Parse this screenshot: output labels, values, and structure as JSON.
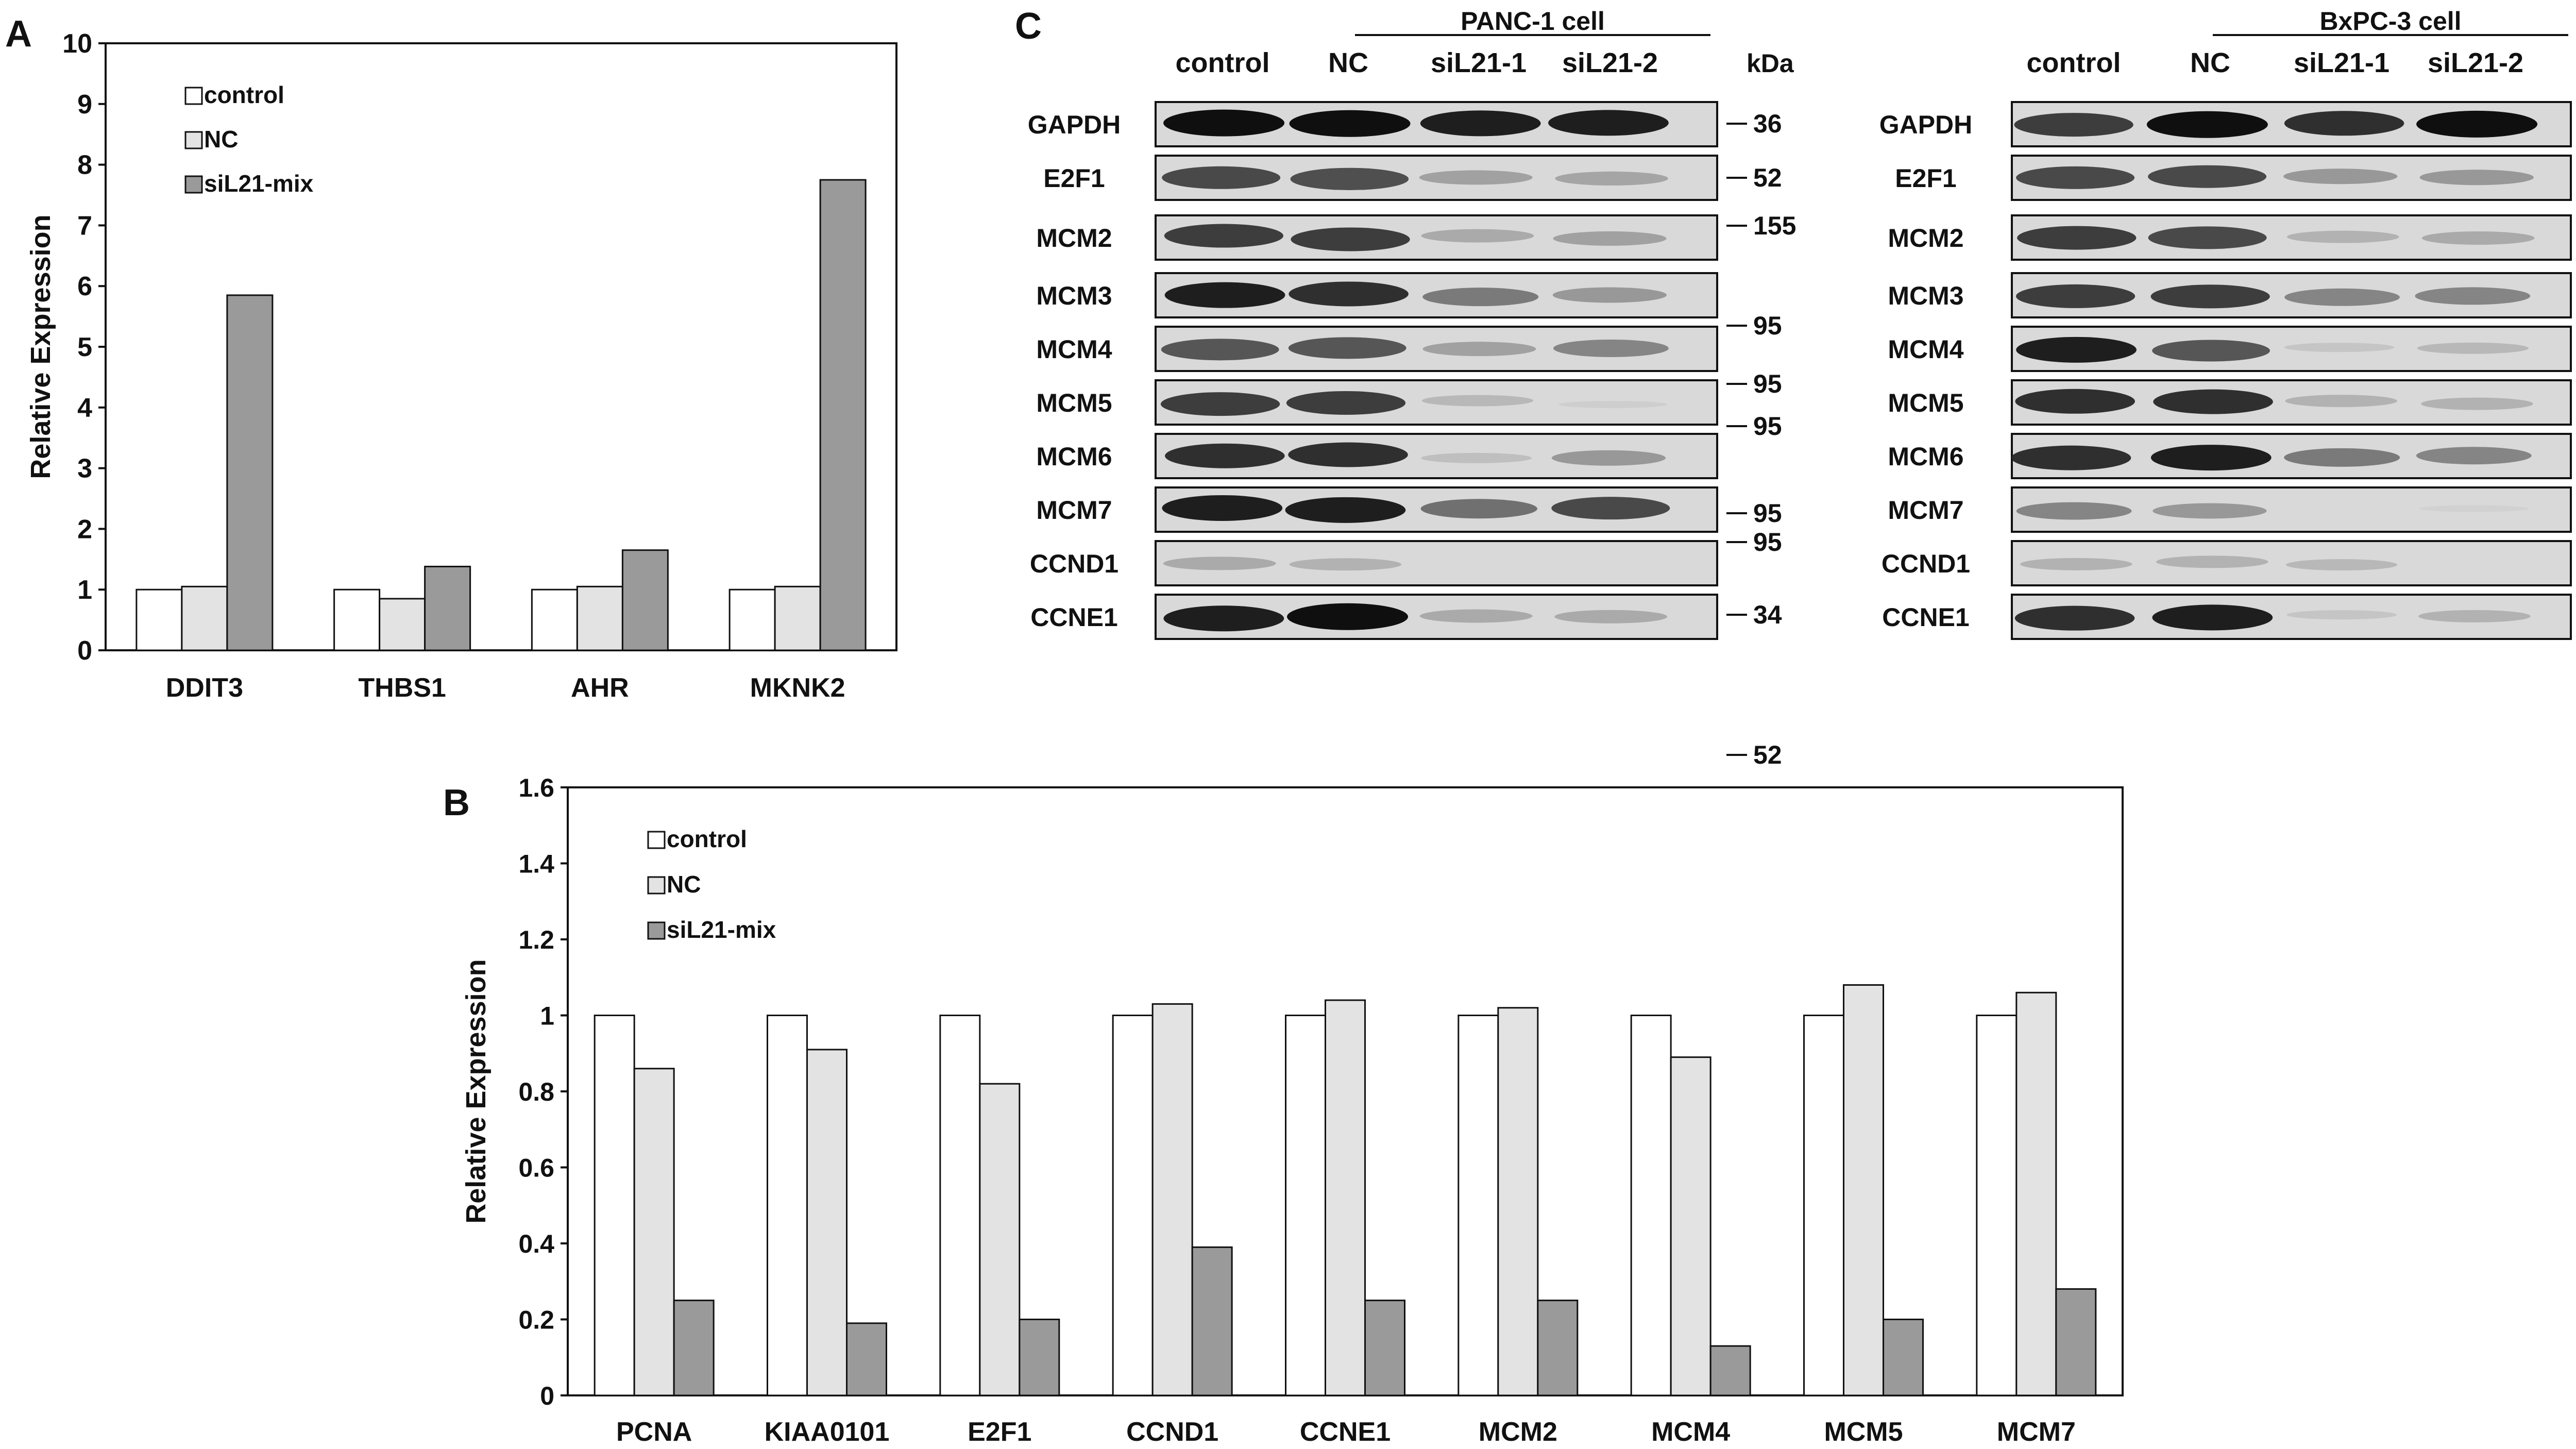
{
  "panels": {
    "a": "A",
    "b": "B",
    "c": "C"
  },
  "colors": {
    "control": "#ffffff",
    "nc": "#e3e3e3",
    "sil21_mix": "#9a9a9a",
    "stroke": "#111111",
    "blot_bg": "#d9d9d9"
  },
  "chart_data": [
    {
      "panel": "A",
      "type": "bar",
      "ylabel": "Relative Expression",
      "ylim": [
        0,
        10
      ],
      "yticks": [
        "0",
        "1",
        "2",
        "3",
        "4",
        "5",
        "6",
        "7",
        "8",
        "9",
        "10"
      ],
      "legend_position": "top-left",
      "categories": [
        "DDIT3",
        "THBS1",
        "AHR",
        "MKNK2"
      ],
      "series": [
        {
          "name": "control",
          "color": "#ffffff",
          "values": [
            1.0,
            1.0,
            1.0,
            1.0
          ]
        },
        {
          "name": "NC",
          "color": "#e3e3e3",
          "values": [
            1.05,
            0.85,
            1.05,
            1.05
          ]
        },
        {
          "name": "siL21-mix",
          "color": "#9a9a9a",
          "values": [
            5.85,
            1.38,
            1.65,
            7.75
          ]
        }
      ]
    },
    {
      "panel": "B",
      "type": "bar",
      "ylabel": "Relative Expression",
      "ylim": [
        0,
        1.6
      ],
      "yticks": [
        "0",
        "0.2",
        "0.4",
        "0.6",
        "0.8",
        "1",
        "1.2",
        "1.4",
        "1.6"
      ],
      "legend_position": "top-left",
      "categories": [
        "PCNA",
        "KIAA0101",
        "E2F1",
        "CCND1",
        "CCNE1",
        "MCM2",
        "MCM4",
        "MCM5",
        "MCM7"
      ],
      "series": [
        {
          "name": "control",
          "color": "#ffffff",
          "values": [
            1.0,
            1.0,
            1.0,
            1.0,
            1.0,
            1.0,
            1.0,
            1.0,
            1.0
          ]
        },
        {
          "name": "NC",
          "color": "#e3e3e3",
          "values": [
            0.86,
            0.91,
            0.82,
            1.03,
            1.04,
            1.02,
            0.89,
            1.08,
            1.06
          ]
        },
        {
          "name": "siL21-mix",
          "color": "#9a9a9a",
          "values": [
            0.25,
            0.19,
            0.2,
            0.39,
            0.25,
            0.25,
            0.13,
            0.2,
            0.28
          ]
        }
      ]
    }
  ],
  "blots": {
    "kda_label": "kDa",
    "lanes": [
      "control",
      "NC",
      "siL21-1",
      "siL21-2"
    ],
    "proteins": [
      "GAPDH",
      "E2F1",
      "MCM2",
      "MCM3",
      "MCM4",
      "MCM5",
      "MCM6",
      "MCM7",
      "CCND1",
      "CCNE1"
    ],
    "panc1": {
      "title": "PANC-1 cell",
      "markers": [
        {
          "label": "36",
          "row": 0
        },
        {
          "label": "52",
          "row": 1
        },
        {
          "label": "155",
          "row": 2
        },
        {
          "label": "95",
          "row": 3
        },
        {
          "label": "95",
          "row": 4
        },
        {
          "label": "95",
          "row": 5
        },
        {
          "label": "95",
          "row": 6
        },
        {
          "label": "95",
          "row": 7
        },
        {
          "label": "34",
          "row": 8
        },
        {
          "label": "52",
          "row": 9
        }
      ],
      "band_intensity": [
        [
          1.0,
          1.0,
          0.95,
          0.95
        ],
        [
          0.8,
          0.78,
          0.4,
          0.38
        ],
        [
          0.85,
          0.85,
          0.35,
          0.4
        ],
        [
          0.95,
          0.9,
          0.6,
          0.45
        ],
        [
          0.75,
          0.75,
          0.4,
          0.55
        ],
        [
          0.85,
          0.85,
          0.25,
          0.05
        ],
        [
          0.9,
          0.9,
          0.2,
          0.45
        ],
        [
          0.95,
          0.95,
          0.65,
          0.8
        ],
        [
          0.35,
          0.3,
          0.0,
          0.0
        ],
        [
          0.95,
          1.0,
          0.35,
          0.35
        ]
      ]
    },
    "bxpc3": {
      "title": "BxPC-3 cell",
      "markers": [
        {
          "label": "36",
          "row": 0
        },
        {
          "label": "52",
          "row": 1
        },
        {
          "label": "155",
          "row": 2
        },
        {
          "label": "95",
          "row": 3
        },
        {
          "label": "95",
          "row": 4
        },
        {
          "label": "95",
          "row": 5
        },
        {
          "label": "95",
          "row": 6
        },
        {
          "label": "95",
          "row": 7
        },
        {
          "label": "34",
          "row": 8
        },
        {
          "label": "52",
          "row": 9
        }
      ],
      "band_intensity": [
        [
          0.85,
          1.0,
          0.9,
          1.0
        ],
        [
          0.8,
          0.8,
          0.45,
          0.45
        ],
        [
          0.85,
          0.8,
          0.3,
          0.35
        ],
        [
          0.85,
          0.85,
          0.55,
          0.55
        ],
        [
          0.95,
          0.75,
          0.15,
          0.25
        ],
        [
          0.9,
          0.9,
          0.3,
          0.3
        ],
        [
          0.9,
          0.95,
          0.6,
          0.55
        ],
        [
          0.55,
          0.45,
          0.0,
          0.03
        ],
        [
          0.3,
          0.3,
          0.25,
          0.0
        ],
        [
          0.9,
          0.95,
          0.15,
          0.3
        ]
      ]
    }
  }
}
